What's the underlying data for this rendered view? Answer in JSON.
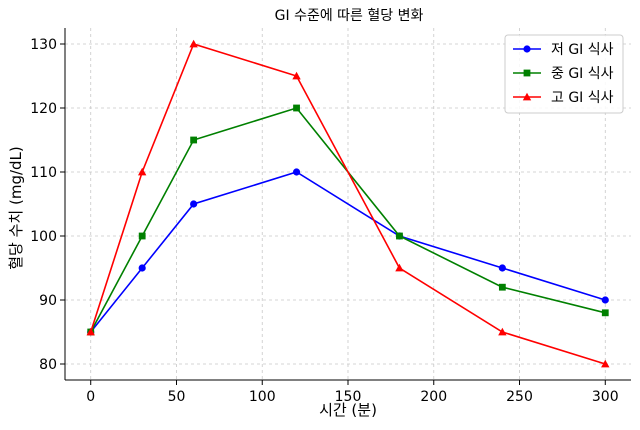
{
  "chart_data": {
    "type": "line",
    "title": "GI 수준에 따른 혈당 변화",
    "xlabel": "시간 (분)",
    "ylabel": "혈당 수치 (mg/dL)",
    "x": [
      0,
      30,
      60,
      120,
      180,
      240,
      300
    ],
    "xlim": [
      -15,
      315
    ],
    "ylim": [
      77.5,
      132.5
    ],
    "xticks": [
      0,
      50,
      100,
      150,
      200,
      250,
      300
    ],
    "yticks": [
      80,
      90,
      100,
      110,
      120,
      130
    ],
    "grid": true,
    "legend_position": "top-right",
    "series": [
      {
        "name": "저 GI 식사",
        "color": "#0000ff",
        "marker": "circle",
        "values": [
          85,
          95,
          105,
          110,
          100,
          95,
          90
        ]
      },
      {
        "name": "중 GI 식사",
        "color": "#008000",
        "marker": "square",
        "values": [
          85,
          100,
          115,
          120,
          100,
          92,
          88
        ]
      },
      {
        "name": "고 GI 식사",
        "color": "#ff0000",
        "marker": "triangle",
        "values": [
          85,
          110,
          130,
          125,
          95,
          85,
          80
        ]
      }
    ]
  }
}
